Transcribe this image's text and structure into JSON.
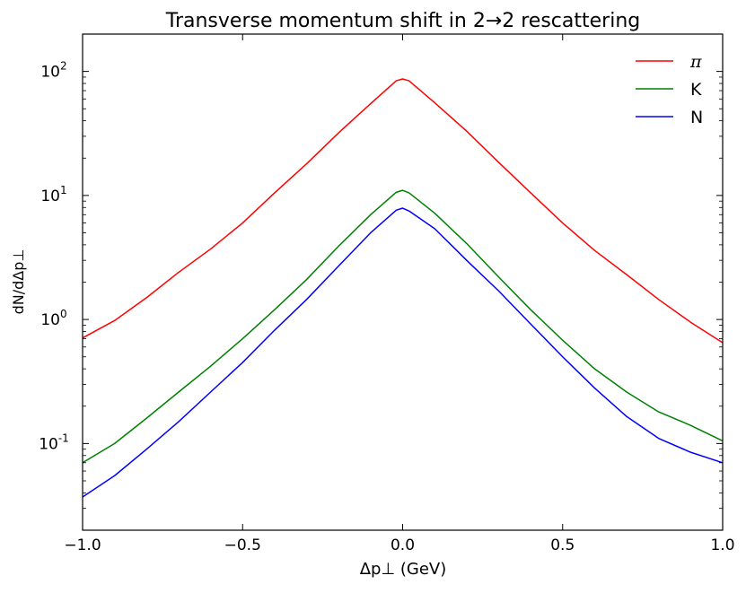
{
  "chart_data": {
    "type": "line",
    "title": "Transverse momentum shift in 2→2 rescattering",
    "xlabel": "Δp⊥ (GeV)",
    "ylabel": "dN/dΔp⊥",
    "xlim": [
      -1.0,
      1.0
    ],
    "ylim": [
      0.02,
      200
    ],
    "yscale": "log",
    "grid": false,
    "legend_position": "top-right",
    "xticks": [
      {
        "value": -1.0,
        "label": "−1.0"
      },
      {
        "value": -0.5,
        "label": "−0.5"
      },
      {
        "value": 0.0,
        "label": "0.0"
      },
      {
        "value": 0.5,
        "label": "0.5"
      },
      {
        "value": 1.0,
        "label": "1.0"
      }
    ],
    "yticks": [
      {
        "value": 0.1,
        "base": "10",
        "exp": "-1"
      },
      {
        "value": 1,
        "base": "10",
        "exp": "0"
      },
      {
        "value": 10,
        "base": "10",
        "exp": "1"
      },
      {
        "value": 100,
        "base": "10",
        "exp": "2"
      }
    ],
    "x": [
      -1.0,
      -0.9,
      -0.8,
      -0.7,
      -0.6,
      -0.5,
      -0.4,
      -0.3,
      -0.2,
      -0.1,
      -0.02,
      0.0,
      0.02,
      0.1,
      0.2,
      0.3,
      0.4,
      0.5,
      0.6,
      0.7,
      0.8,
      0.9,
      1.0
    ],
    "series": [
      {
        "name": "π",
        "color": "#ff0000",
        "values": [
          0.71,
          0.98,
          1.5,
          2.4,
          3.7,
          6.0,
          10.5,
          18.0,
          32.0,
          55.0,
          84.0,
          87.0,
          84.0,
          56.0,
          33.0,
          18.5,
          10.5,
          6.0,
          3.6,
          2.3,
          1.45,
          0.95,
          0.65
        ]
      },
      {
        "name": "K",
        "color": "#008000",
        "values": [
          0.07,
          0.1,
          0.16,
          0.26,
          0.42,
          0.7,
          1.2,
          2.1,
          3.9,
          7.0,
          10.6,
          11.0,
          10.5,
          7.2,
          4.1,
          2.2,
          1.2,
          0.68,
          0.4,
          0.26,
          0.18,
          0.14,
          0.105
        ]
      },
      {
        "name": "N",
        "color": "#0000ff",
        "values": [
          0.037,
          0.055,
          0.09,
          0.15,
          0.26,
          0.45,
          0.82,
          1.45,
          2.7,
          5.0,
          7.6,
          7.9,
          7.5,
          5.4,
          3.0,
          1.7,
          0.92,
          0.5,
          0.28,
          0.165,
          0.11,
          0.085,
          0.07
        ]
      }
    ]
  }
}
